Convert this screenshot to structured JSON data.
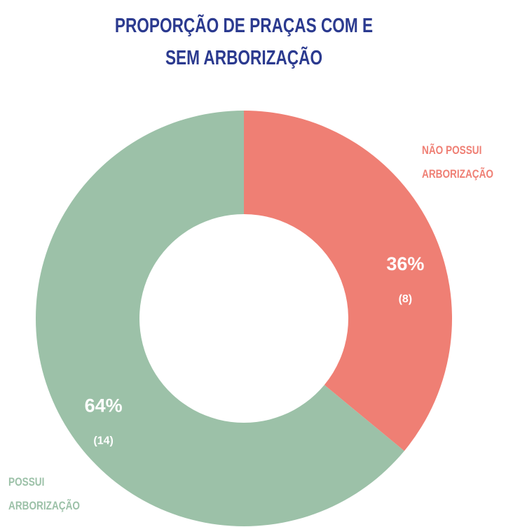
{
  "chart_data": {
    "type": "donut",
    "title": "PROPORÇÃO DE PRAÇAS COM E SEM ARBORIZAÇÃO",
    "categories": [
      "NÃO POSSUI ARBORIZAÇÃO",
      "POSSUI ARBORIZAÇÃO"
    ],
    "values": [
      36,
      64
    ],
    "value_labels": [
      "36%",
      "64%"
    ],
    "counts": [
      8,
      14
    ],
    "count_labels": [
      "(8)",
      "(14)"
    ],
    "colors": [
      "#ef7f74",
      "#9cc1a8"
    ]
  }
}
